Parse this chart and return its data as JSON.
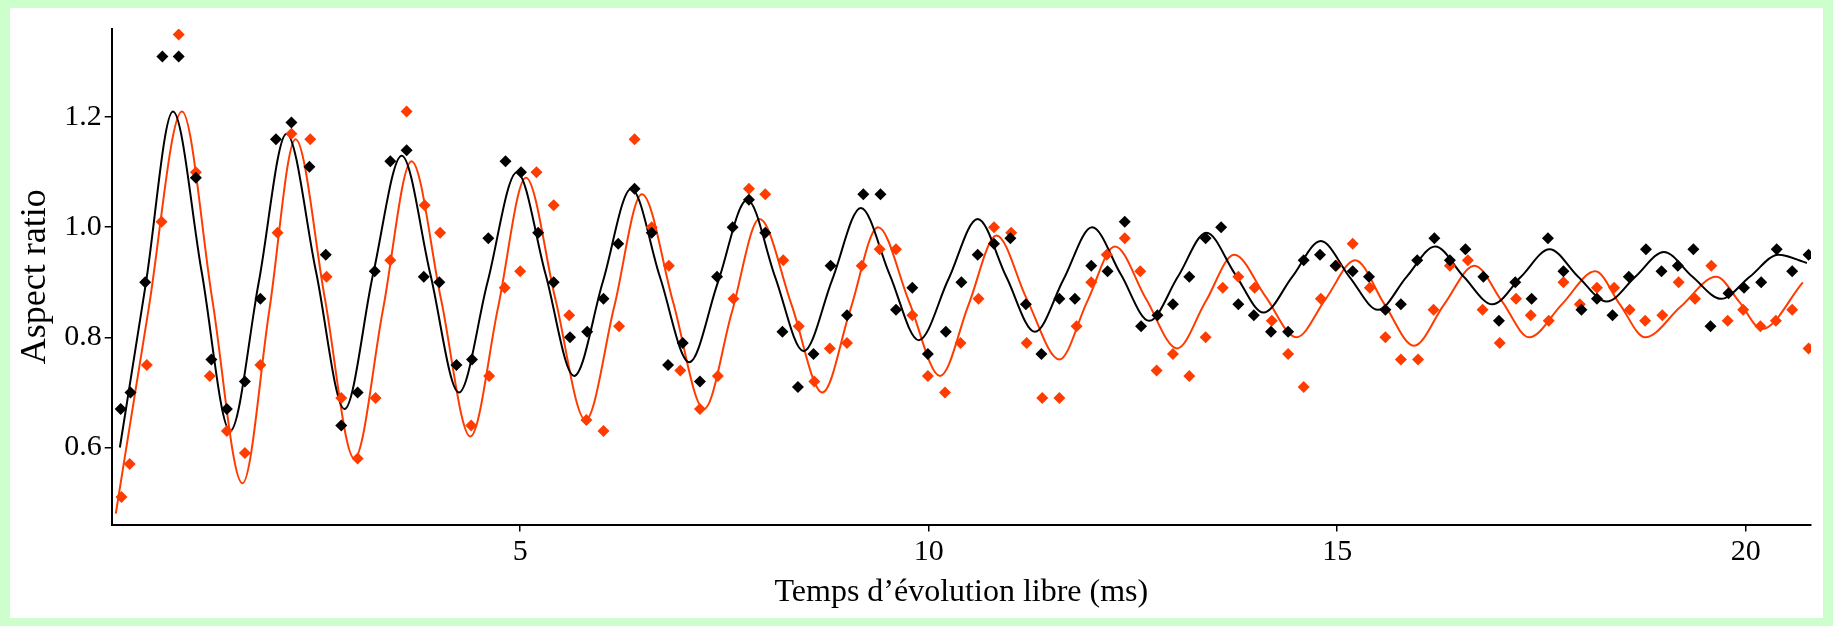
{
  "chart_data": {
    "type": "scatter",
    "xlabel": "Temps d’évolution libre (ms)",
    "ylabel": "Aspect ratio",
    "xlim": [
      0,
      20.8
    ],
    "ylim": [
      0.46,
      1.36
    ],
    "xticks": [
      5,
      10,
      15,
      20
    ],
    "yticks": [
      0.6,
      0.8,
      {
        "value": 1,
        "label": "1.0"
      },
      1.2
    ],
    "grid": false,
    "legend": false,
    "marker": "diamond",
    "series": [
      {
        "color": "#000000",
        "x": [
          0.11,
          0.23,
          0.41,
          0.62,
          0.82,
          1.03,
          1.22,
          1.41,
          1.63,
          1.82,
          2.01,
          2.2,
          2.42,
          2.62,
          2.81,
          3.01,
          3.22,
          3.41,
          3.61,
          3.82,
          4.01,
          4.22,
          4.41,
          4.61,
          4.82,
          5.01,
          5.22,
          5.41,
          5.61,
          5.82,
          6.02,
          6.2,
          6.4,
          6.61,
          6.81,
          6.99,
          7.2,
          7.41,
          7.6,
          7.8,
          8.0,
          8.21,
          8.4,
          8.59,
          8.8,
          9.0,
          9.2,
          9.41,
          9.6,
          9.8,
          9.99,
          10.21,
          10.4,
          10.6,
          10.8,
          11.0,
          11.19,
          11.38,
          11.6,
          11.79,
          11.99,
          12.19,
          12.4,
          12.6,
          12.8,
          12.99,
          13.19,
          13.39,
          13.58,
          13.79,
          13.98,
          14.19,
          14.4,
          14.59,
          14.79,
          14.98,
          15.19,
          15.39,
          15.59,
          15.78,
          15.98,
          16.19,
          16.38,
          16.57,
          16.79,
          16.98,
          17.18,
          17.38,
          17.58,
          17.77,
          17.99,
          18.18,
          18.37,
          18.57,
          18.78,
          18.97,
          19.17,
          19.36,
          19.57,
          19.79,
          19.98,
          20.19,
          20.38,
          20.57,
          20.77
        ],
        "values": [
          0.67,
          0.7,
          0.9,
          1.31,
          1.31,
          1.09,
          0.76,
          0.67,
          0.72,
          0.87,
          1.16,
          1.19,
          1.11,
          0.95,
          0.64,
          0.7,
          0.92,
          1.12,
          1.14,
          0.91,
          0.9,
          0.75,
          0.76,
          0.98,
          1.12,
          1.1,
          0.99,
          0.9,
          0.8,
          0.81,
          0.87,
          0.97,
          1.07,
          0.99,
          0.75,
          0.79,
          0.72,
          0.91,
          1.0,
          1.05,
          0.99,
          0.81,
          0.71,
          0.77,
          0.93,
          0.84,
          1.06,
          1.06,
          0.85,
          0.89,
          0.77,
          0.81,
          0.9,
          0.95,
          0.97,
          0.98,
          0.86,
          0.77,
          0.87,
          0.87,
          0.93,
          0.92,
          1.01,
          0.82,
          0.84,
          0.86,
          0.91,
          0.98,
          1.0,
          0.86,
          0.84,
          0.81,
          0.81,
          0.94,
          0.95,
          0.93,
          0.92,
          0.91,
          0.85,
          0.86,
          0.94,
          0.98,
          0.94,
          0.96,
          0.91,
          0.83,
          0.9,
          0.87,
          0.98,
          0.92,
          0.85,
          0.87,
          0.84,
          0.91,
          0.96,
          0.92,
          0.93,
          0.96,
          0.82,
          0.88,
          0.89,
          0.9,
          0.96,
          0.92,
          0.95
        ]
      },
      {
        "color": "#ff3c00",
        "x": [
          0.12,
          0.22,
          0.43,
          0.61,
          0.82,
          1.03,
          1.2,
          1.41,
          1.63,
          1.82,
          2.03,
          2.2,
          2.43,
          2.63,
          2.81,
          3.01,
          3.23,
          3.41,
          3.61,
          3.83,
          4.02,
          4.4,
          4.62,
          4.81,
          5.0,
          5.2,
          5.41,
          5.6,
          5.81,
          6.02,
          6.21,
          6.4,
          6.61,
          6.82,
          6.96,
          7.2,
          7.42,
          7.61,
          7.8,
          8.0,
          8.22,
          8.41,
          8.6,
          8.79,
          9.0,
          9.18,
          9.4,
          9.6,
          9.8,
          9.99,
          10.2,
          10.39,
          10.61,
          10.8,
          11.01,
          11.2,
          11.39,
          11.6,
          11.81,
          11.99,
          12.18,
          12.4,
          12.59,
          12.79,
          12.99,
          13.19,
          13.39,
          13.6,
          13.79,
          13.99,
          14.2,
          14.4,
          14.59,
          14.8,
          14.99,
          15.19,
          15.4,
          15.59,
          15.78,
          15.99,
          16.18,
          16.38,
          16.6,
          16.78,
          16.99,
          17.19,
          17.37,
          17.59,
          17.77,
          17.97,
          18.18,
          18.39,
          18.58,
          18.77,
          18.98,
          19.18,
          19.38,
          19.58,
          19.78,
          19.97,
          20.18,
          20.37,
          20.57,
          20.77
        ],
        "values": [
          0.51,
          0.57,
          0.75,
          1.01,
          1.35,
          1.1,
          0.73,
          0.63,
          0.59,
          0.75,
          0.99,
          1.17,
          1.16,
          0.91,
          0.69,
          0.58,
          0.69,
          0.94,
          1.21,
          1.04,
          0.99,
          0.64,
          0.73,
          0.89,
          0.92,
          1.1,
          1.04,
          0.84,
          0.65,
          0.63,
          0.82,
          1.16,
          1.0,
          0.93,
          0.74,
          0.67,
          0.73,
          0.87,
          1.07,
          1.06,
          0.94,
          0.82,
          0.72,
          0.78,
          0.79,
          0.93,
          0.96,
          0.96,
          0.84,
          0.73,
          0.7,
          0.79,
          0.87,
          1.0,
          0.99,
          0.79,
          0.69,
          0.69,
          0.82,
          0.9,
          0.95,
          0.98,
          0.92,
          0.74,
          0.77,
          0.73,
          0.8,
          0.89,
          0.91,
          0.89,
          0.83,
          0.77,
          0.71,
          0.87,
          0.93,
          0.97,
          0.89,
          0.8,
          0.76,
          0.76,
          0.85,
          0.93,
          0.94,
          0.85,
          0.79,
          0.87,
          0.84,
          0.83,
          0.9,
          0.86,
          0.89,
          0.89,
          0.85,
          0.83,
          0.84,
          0.9,
          0.87,
          0.93,
          0.83,
          0.85,
          0.82,
          0.83,
          0.85,
          0.78
        ]
      },
      {
        "type": "line",
        "marker": "none",
        "color": "#000000",
        "x": [
          0.1,
          0.42,
          0.75,
          1.1,
          1.45,
          1.8,
          2.14,
          2.5,
          2.85,
          3.2,
          3.55,
          3.9,
          4.25,
          4.6,
          4.96,
          5.31,
          5.66,
          6.01,
          6.36,
          6.71,
          7.07,
          7.42,
          7.78,
          8.12,
          8.47,
          8.82,
          9.17,
          9.52,
          9.88,
          10.24,
          10.6,
          10.95,
          11.3,
          11.65,
          12.0,
          12.35,
          12.7,
          13.05,
          13.4,
          13.75,
          14.1,
          14.45,
          14.8,
          15.15,
          15.5,
          15.85,
          16.2,
          16.55,
          16.9,
          17.25,
          17.6,
          17.95,
          18.3,
          18.65,
          19.0,
          19.35,
          19.7,
          20.05,
          20.4,
          20.75
        ],
        "values": [
          0.6,
          0.9,
          1.21,
          0.92,
          0.63,
          0.9,
          1.17,
          0.92,
          0.67,
          0.915,
          1.13,
          0.915,
          0.7,
          0.9,
          1.1,
          0.915,
          0.73,
          0.9,
          1.07,
          0.91,
          0.755,
          0.9,
          1.05,
          0.91,
          0.775,
          0.905,
          1.035,
          0.915,
          0.795,
          0.905,
          1.015,
          0.91,
          0.81,
          0.905,
          1.0,
          0.915,
          0.83,
          0.91,
          0.99,
          0.915,
          0.845,
          0.91,
          0.975,
          0.91,
          0.85,
          0.91,
          0.965,
          0.91,
          0.86,
          0.91,
          0.96,
          0.91,
          0.865,
          0.91,
          0.955,
          0.91,
          0.87,
          0.91,
          0.95,
          0.935
        ]
      },
      {
        "type": "line",
        "marker": "none",
        "color": "#ff3c00",
        "x": [
          0.05,
          0.45,
          0.86,
          1.23,
          1.6,
          1.93,
          2.25,
          2.61,
          2.97,
          3.32,
          3.67,
          4.03,
          4.39,
          4.73,
          5.07,
          5.43,
          5.8,
          6.15,
          6.49,
          6.87,
          7.25,
          7.59,
          7.93,
          8.32,
          8.7,
          9.04,
          9.38,
          9.76,
          10.14,
          10.49,
          10.83,
          11.2,
          11.6,
          11.94,
          12.28,
          12.66,
          13.04,
          13.39,
          13.74,
          14.12,
          14.5,
          14.86,
          15.22,
          15.58,
          15.94,
          16.31,
          16.68,
          17.02,
          17.35,
          17.75,
          18.16,
          18.46,
          18.77,
          19.2,
          19.64,
          19.92,
          20.2,
          20.7
        ],
        "values": [
          0.48,
          0.85,
          1.21,
          0.87,
          0.535,
          0.85,
          1.16,
          0.87,
          0.58,
          0.85,
          1.12,
          0.87,
          0.62,
          0.855,
          1.09,
          0.87,
          0.65,
          0.855,
          1.06,
          0.865,
          0.67,
          0.845,
          1.015,
          0.86,
          0.7,
          0.85,
          1.0,
          0.865,
          0.73,
          0.86,
          0.985,
          0.87,
          0.76,
          0.865,
          0.965,
          0.87,
          0.78,
          0.865,
          0.95,
          0.875,
          0.8,
          0.87,
          0.94,
          0.86,
          0.785,
          0.86,
          0.93,
          0.865,
          0.8,
          0.86,
          0.92,
          0.86,
          0.8,
          0.855,
          0.91,
          0.865,
          0.815,
          0.9
        ]
      }
    ]
  }
}
